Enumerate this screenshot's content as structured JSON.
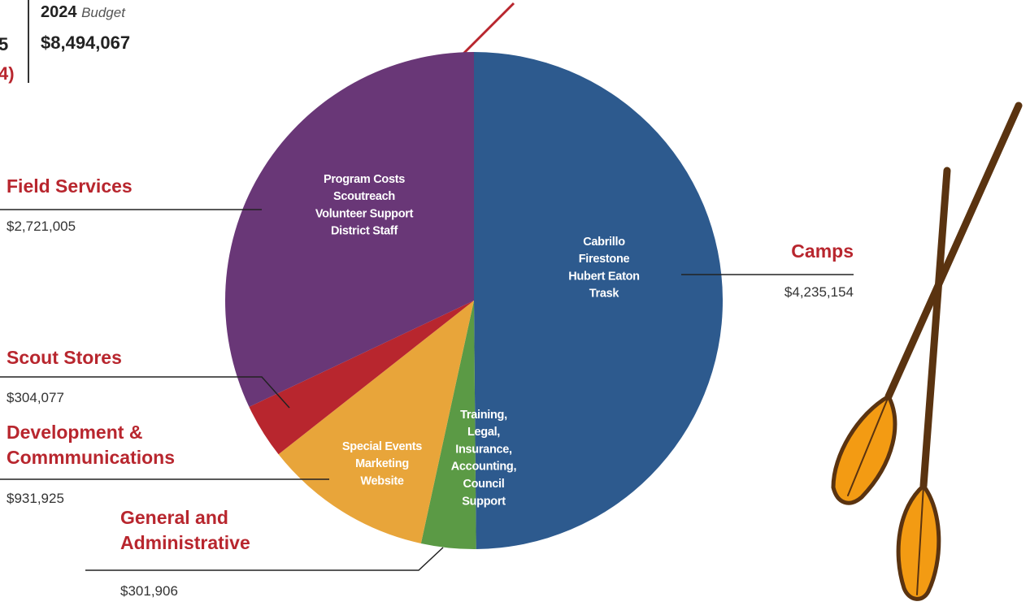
{
  "header": {
    "year": "2024",
    "caption": "Budget",
    "total": "$8,494,067",
    "cropped_left_top": "5",
    "cropped_left_bottom": "4)"
  },
  "chart_data": {
    "type": "pie",
    "categories": [
      "Camps",
      "General and Administrative",
      "Development & Commmunications",
      "Scout Stores",
      "Field Services"
    ],
    "values": [
      4235154,
      301906,
      931925,
      304077,
      2721005
    ],
    "value_labels": [
      "$4,235,154",
      "$301,906",
      "$931,925",
      "$304,077",
      "$2,721,005"
    ],
    "colors": [
      "#2d5a8e",
      "#5b9a45",
      "#e8a53a",
      "#b8262e",
      "#693777"
    ],
    "slice_descriptions": [
      [
        "Cabrillo",
        "Firestone",
        "Hubert Eaton",
        "Trask"
      ],
      [
        "Training,",
        "Legal,",
        "Insurance,",
        "Accounting,",
        "Council",
        "Support"
      ],
      [
        "Special Events",
        "Marketing",
        "Website"
      ],
      [],
      [
        "Program Costs",
        "Scoutreach",
        "Volunteer Support",
        "District Staff"
      ]
    ]
  }
}
